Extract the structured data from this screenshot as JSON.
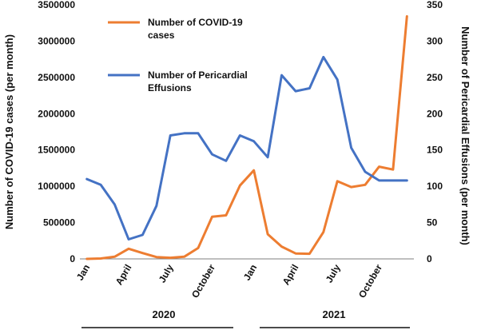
{
  "chart_data": {
    "type": "line",
    "y_left": {
      "label": "Number of COVID-19 cases (per month)",
      "lim": [
        0,
        3500000
      ],
      "ticks": [
        "0",
        "500000",
        "1000000",
        "1500000",
        "2000000",
        "2500000",
        "3000000",
        "3500000"
      ]
    },
    "y_right": {
      "label": "Number of Pericardial Effusions (per month)",
      "lim": [
        0,
        350
      ],
      "ticks": [
        "0",
        "50",
        "100",
        "150",
        "200",
        "250",
        "300",
        "350"
      ]
    },
    "x_tick_labels": [
      {
        "index": 0,
        "label": "Jan"
      },
      {
        "index": 3,
        "label": "April"
      },
      {
        "index": 6,
        "label": "July"
      },
      {
        "index": 9,
        "label": "October"
      },
      {
        "index": 12,
        "label": "Jan"
      },
      {
        "index": 15,
        "label": "April"
      },
      {
        "index": 18,
        "label": "July"
      },
      {
        "index": 21,
        "label": "October"
      }
    ],
    "year_labels": [
      "2020",
      "2021"
    ],
    "series": [
      {
        "name": "Number of COVID-19 cases",
        "axis": "left",
        "color": "#ED7D31",
        "values": [
          0,
          5000,
          30000,
          140000,
          80000,
          25000,
          15000,
          30000,
          150000,
          580000,
          600000,
          1010000,
          1220000,
          340000,
          170000,
          75000,
          70000,
          370000,
          1070000,
          990000,
          1020000,
          1270000,
          1230000,
          3340000
        ]
      },
      {
        "name": "Number of Pericardial Effusions",
        "axis": "right",
        "color": "#4472C4",
        "values": [
          110,
          102,
          75,
          27,
          33,
          73,
          170,
          173,
          173,
          144,
          135,
          170,
          162,
          140,
          253,
          231,
          235,
          278,
          247,
          153,
          120,
          108,
          108,
          108
        ]
      }
    ],
    "legend": {
      "placement": "top-left",
      "entries": [
        {
          "line1": "Number of COVID-19",
          "line2": "cases",
          "color": "#ED7D31"
        },
        {
          "line1": "Number of Pericardial",
          "line2": "Effusions",
          "color": "#4472C4"
        }
      ]
    },
    "grid": false
  }
}
